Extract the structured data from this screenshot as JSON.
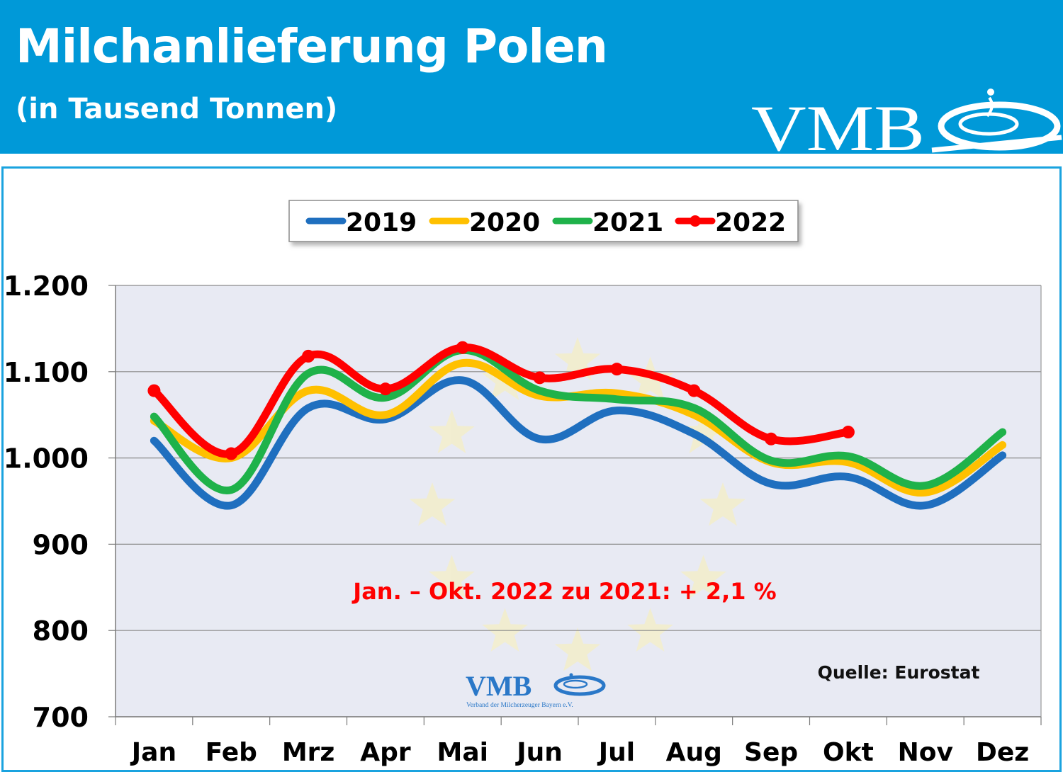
{
  "header": {
    "title": "Milchanlieferung Polen",
    "subtitle": "(in Tausend Tonnen)",
    "logo_text": "VMB",
    "background_color": "#0099d8"
  },
  "chart_data": {
    "type": "line",
    "categories": [
      "Jan",
      "Feb",
      "Mrz",
      "Apr",
      "Mai",
      "Jun",
      "Jul",
      "Aug",
      "Sep",
      "Okt",
      "Nov",
      "Dez"
    ],
    "ylim": [
      700,
      1200
    ],
    "yticks": [
      700,
      800,
      900,
      1000,
      1100,
      1200
    ],
    "ytick_labels": [
      "700",
      "800",
      "900",
      "1.000",
      "1.100",
      "1.200"
    ],
    "grid": true,
    "legend_position": "top-center",
    "series": [
      {
        "name": "2019",
        "color": "#1f6fbf",
        "markers": false,
        "values": [
          1020,
          945,
          1058,
          1045,
          1090,
          1022,
          1055,
          1028,
          970,
          978,
          945,
          1003
        ]
      },
      {
        "name": "2020",
        "color": "#ffc000",
        "markers": false,
        "values": [
          1043,
          1000,
          1078,
          1050,
          1110,
          1072,
          1075,
          1050,
          995,
          995,
          960,
          1015
        ]
      },
      {
        "name": "2021",
        "color": "#1fb24a",
        "markers": false,
        "values": [
          1048,
          963,
          1098,
          1070,
          1125,
          1078,
          1068,
          1058,
          997,
          1002,
          968,
          1030
        ]
      },
      {
        "name": "2022",
        "color": "#ff0000",
        "markers": true,
        "values": [
          1078,
          1005,
          1118,
          1080,
          1128,
          1093,
          1103,
          1078,
          1022,
          1030,
          null,
          null
        ]
      }
    ],
    "annotation": "Jan. – Okt. 2022 zu 2021: + 2,1 %",
    "annotation_color": "#ff0000",
    "source": "Quelle: Eurostat",
    "watermark_logo_text": "VMB",
    "watermark_caption": "Verband der Milcherzeuger Bayern e.V."
  }
}
